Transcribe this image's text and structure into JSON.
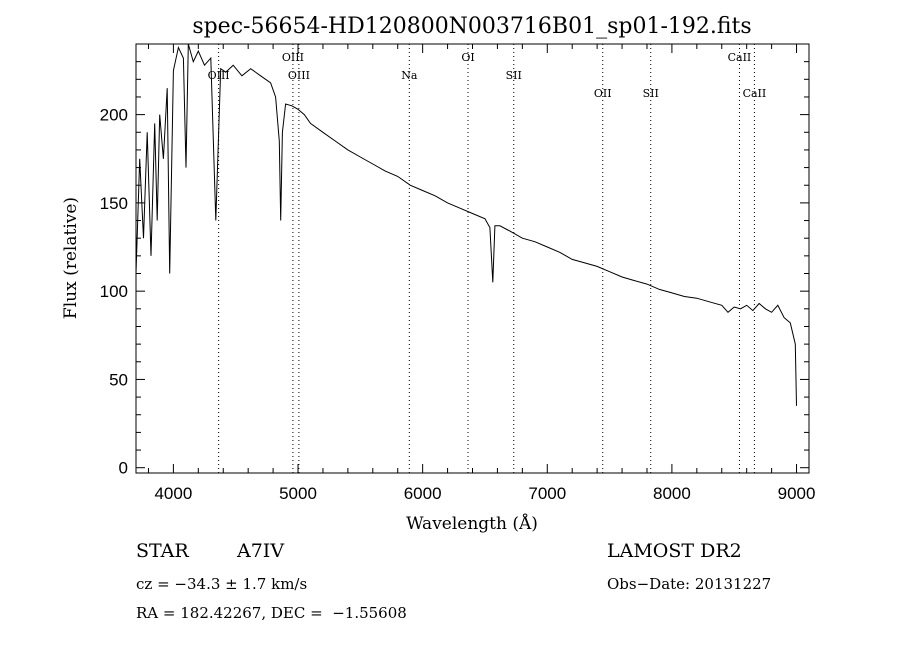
{
  "chart_data": {
    "type": "line",
    "title": "spec-56654-HD120800N003716B01_sp01-192.fits",
    "xlabel": "Wavelength (Å)",
    "ylabel": "Flux (relative)",
    "xlim": [
      3700,
      9100
    ],
    "ylim": [
      -3,
      240
    ],
    "xticks": [
      4000,
      5000,
      6000,
      7000,
      8000,
      9000
    ],
    "yticks": [
      0,
      50,
      100,
      150,
      200
    ],
    "grid": false,
    "series": [
      {
        "x": [
          3700,
          3730,
          3760,
          3790,
          3820,
          3850,
          3870,
          3890,
          3920,
          3950,
          3970,
          4000,
          4040,
          4080,
          4101,
          4120,
          4160,
          4200,
          4250,
          4300,
          4340,
          4380,
          4420,
          4480,
          4550,
          4620,
          4700,
          4780,
          4820,
          4850,
          4861,
          4875,
          4900,
          4950,
          5000,
          5050,
          5100,
          5200,
          5300,
          5400,
          5500,
          5600,
          5700,
          5800,
          5900,
          6000,
          6100,
          6200,
          6300,
          6400,
          6500,
          6540,
          6563,
          6580,
          6620,
          6700,
          6800,
          6900,
          7000,
          7100,
          7200,
          7300,
          7400,
          7500,
          7600,
          7700,
          7800,
          7900,
          8000,
          8100,
          8200,
          8300,
          8400,
          8450,
          8500,
          8550,
          8600,
          8650,
          8700,
          8750,
          8800,
          8850,
          8900,
          8950,
          8990,
          9000
        ],
        "y": [
          110,
          175,
          130,
          190,
          120,
          195,
          140,
          200,
          175,
          215,
          110,
          225,
          238,
          232,
          170,
          240,
          230,
          236,
          228,
          232,
          140,
          226,
          224,
          228,
          222,
          226,
          222,
          218,
          210,
          185,
          140,
          190,
          206,
          205,
          203,
          200,
          195,
          190,
          185,
          180,
          176,
          172,
          168,
          165,
          160,
          157,
          154,
          150,
          147,
          144,
          141,
          136,
          105,
          137,
          137,
          134,
          130,
          128,
          125,
          122,
          118,
          116,
          114,
          111,
          108,
          106,
          104,
          101,
          99,
          97,
          96,
          94,
          92,
          88,
          91,
          90,
          92,
          89,
          93,
          90,
          88,
          92,
          85,
          82,
          70,
          35
        ]
      }
    ],
    "annotations": [
      {
        "label": "OIII",
        "x": 4363,
        "row": 1
      },
      {
        "label": "OIII",
        "x": 4959,
        "row": 0
      },
      {
        "label": "OIII",
        "x": 5007,
        "row": 1
      },
      {
        "label": "Na",
        "x": 5893,
        "row": 1
      },
      {
        "label": "OI",
        "x": 6364,
        "row": 0
      },
      {
        "label": "SII",
        "x": 6731,
        "row": 1
      },
      {
        "label": "OII",
        "x": 7445,
        "row": 2
      },
      {
        "label": "SII",
        "x": 7830,
        "row": 2
      },
      {
        "label": "CaII",
        "x": 8542,
        "row": 0
      },
      {
        "label": "CaII",
        "x": 8662,
        "row": 2
      }
    ]
  },
  "info": {
    "object_class": "STAR",
    "subclass": "A7IV",
    "survey": "LAMOST DR2",
    "cz": "cz = −34.3 ± 1.7 km/s",
    "obs_date": "Obs−Date: 20131227",
    "coords": "RA = 182.42267, DEC =  −1.55608"
  },
  "colors": {
    "line": "#000000",
    "background": "#ffffff"
  }
}
